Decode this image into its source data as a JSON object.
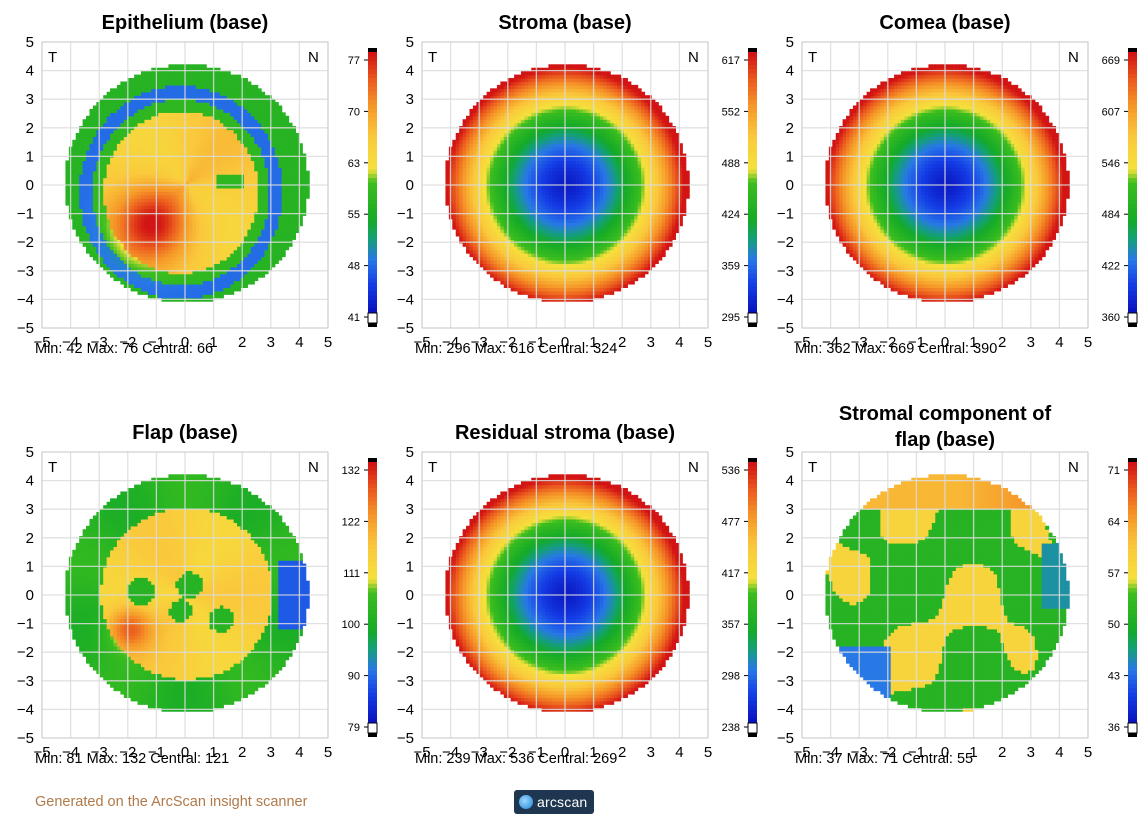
{
  "chart_data": [
    {
      "type": "heatmap",
      "title": "Epithelium (base)",
      "xlim": [
        -5,
        5
      ],
      "ylim": [
        -5,
        5
      ],
      "ticks": [
        "-5",
        "-4",
        "-3",
        "-2",
        "-1",
        "0",
        "1",
        "2",
        "3",
        "4",
        "5"
      ],
      "corner_left": "T",
      "corner_right": "N",
      "colorbar_ticks": [
        "77",
        "70",
        "63",
        "55",
        "48",
        "41"
      ],
      "stats": "Min: 42 Max: 76 Central: 66",
      "pattern": "epi"
    },
    {
      "type": "heatmap",
      "title": "Stroma (base)",
      "xlim": [
        -5,
        5
      ],
      "ylim": [
        -5,
        5
      ],
      "ticks": [
        "-5",
        "-4",
        "-3",
        "-2",
        "-1",
        "0",
        "1",
        "2",
        "3",
        "4",
        "5"
      ],
      "corner_left": "T",
      "corner_right": "N",
      "colorbar_ticks": [
        "617",
        "552",
        "488",
        "424",
        "359",
        "295"
      ],
      "stats": "Min: 296 Max: 616 Central: 324",
      "pattern": "bowl"
    },
    {
      "type": "heatmap",
      "title": "Comea (base)",
      "xlim": [
        -5,
        5
      ],
      "ylim": [
        -5,
        5
      ],
      "ticks": [
        "-5",
        "-4",
        "-3",
        "-2",
        "-1",
        "0",
        "1",
        "2",
        "3",
        "4",
        "5"
      ],
      "corner_left": "T",
      "corner_right": "N",
      "colorbar_ticks": [
        "669",
        "607",
        "546",
        "484",
        "422",
        "360"
      ],
      "stats": "Min: 362 Max: 669 Central: 390",
      "pattern": "bowl"
    },
    {
      "type": "heatmap",
      "title": "Flap (base)",
      "xlim": [
        -5,
        5
      ],
      "ylim": [
        -5,
        5
      ],
      "ticks": [
        "-5",
        "-4",
        "-3",
        "-2",
        "-1",
        "0",
        "1",
        "2",
        "3",
        "4",
        "5"
      ],
      "corner_left": "T",
      "corner_right": "N",
      "colorbar_ticks": [
        "132",
        "122",
        "111",
        "100",
        "90",
        "79"
      ],
      "stats": "Min: 81 Max: 132 Central: 121",
      "pattern": "flap"
    },
    {
      "type": "heatmap",
      "title": "Residual stroma (base)",
      "xlim": [
        -5,
        5
      ],
      "ylim": [
        -5,
        5
      ],
      "ticks": [
        "-5",
        "-4",
        "-3",
        "-2",
        "-1",
        "0",
        "1",
        "2",
        "3",
        "4",
        "5"
      ],
      "corner_left": "T",
      "corner_right": "N",
      "colorbar_ticks": [
        "536",
        "477",
        "417",
        "357",
        "298",
        "238"
      ],
      "stats": "Min: 239 Max: 536 Central: 269",
      "pattern": "bowl"
    },
    {
      "type": "heatmap",
      "title": "Stromal component of flap (base)",
      "xlim": [
        -5,
        5
      ],
      "ylim": [
        -5,
        5
      ],
      "ticks": [
        "-5",
        "-4",
        "-3",
        "-2",
        "-1",
        "0",
        "1",
        "2",
        "3",
        "4",
        "5"
      ],
      "corner_left": "T",
      "corner_right": "N",
      "colorbar_ticks": [
        "71",
        "64",
        "57",
        "50",
        "43",
        "36"
      ],
      "stats": "Min: 37 Max: 71 Central: 55",
      "pattern": "patchy"
    }
  ],
  "footer": "Generated on the ArcScan insight scanner",
  "logo_text": "arcscan"
}
